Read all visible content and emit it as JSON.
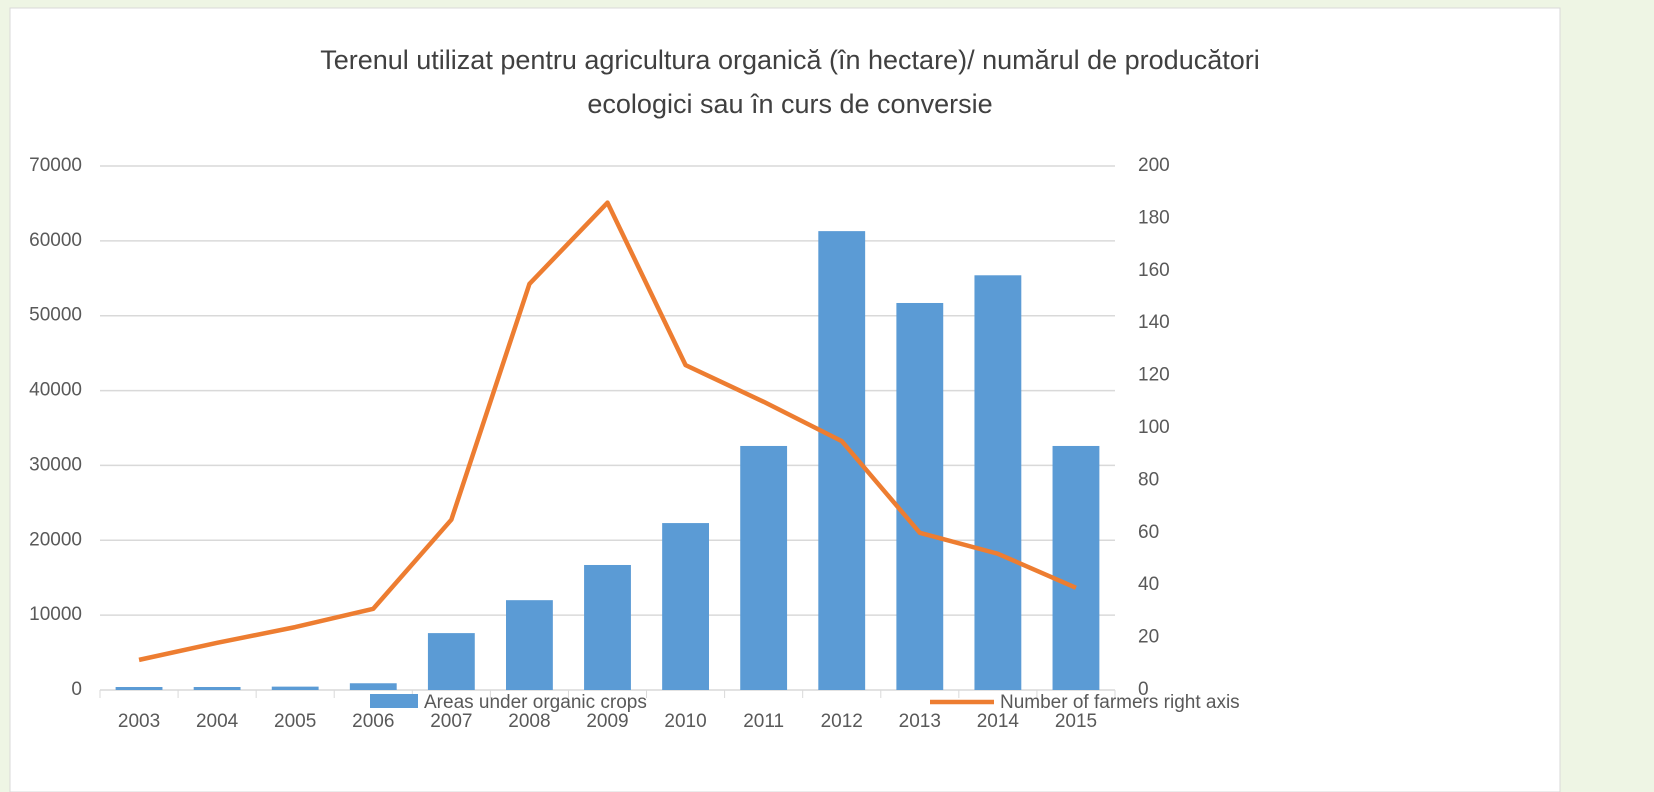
{
  "chart_data": {
    "type": "bar_line",
    "title": [
      "Terenul utilizat pentru agricultura organică (în hectare)/ numărul de producători",
      "ecologici sau în curs de conversie"
    ],
    "categories": [
      "2003",
      "2004",
      "2005",
      "2006",
      "2007",
      "2008",
      "2009",
      "2010",
      "2011",
      "2012",
      "2013",
      "2014",
      "2015"
    ],
    "series": [
      {
        "name": "Areas under organic crops",
        "color": "#5b9bd5",
        "kind": "bar",
        "values": [
          400,
          400,
          450,
          900,
          7600,
          12000,
          16700,
          22300,
          32600,
          61300,
          51700,
          55400,
          32600
        ]
      },
      {
        "name": "Number of farmers right axis",
        "color": "#ed7d31",
        "kind": "line",
        "axis": "y2",
        "values": [
          11.5,
          18,
          24,
          31,
          65,
          155,
          186,
          124,
          110,
          95,
          60,
          52,
          39
        ]
      }
    ],
    "ylim": [
      0,
      70000
    ],
    "yticks": [
      0,
      10000,
      20000,
      30000,
      40000,
      50000,
      60000,
      70000
    ],
    "y2lim": [
      0,
      200
    ],
    "y2ticks": [
      0,
      20,
      40,
      60,
      80,
      100,
      120,
      140,
      160,
      180,
      200
    ],
    "grid": true
  }
}
